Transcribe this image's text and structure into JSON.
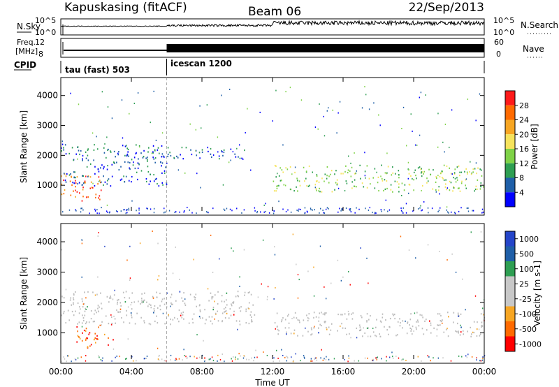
{
  "header": {
    "station": "Kapuskasing (fitACF)",
    "beam": "Beam 06",
    "date": "22/Sep/2013"
  },
  "noise_panel": {
    "left_label": "N.Sky",
    "left_ticks": [
      "10^5",
      "10^0"
    ],
    "right_label": "N.Search",
    "right_ticks": [
      "10^5",
      "10^0"
    ]
  },
  "freq_panel": {
    "left_label_top": "Freq.",
    "left_label_bottom": "[MHz]",
    "left_ticks": [
      "12",
      "8"
    ],
    "right_label": "Nave",
    "right_ticks": [
      "60",
      "0"
    ]
  },
  "cpid_panel": {
    "label": "CPID",
    "segments": [
      {
        "label": "tau (fast) 503",
        "start_hour": 0,
        "end_hour": 6
      },
      {
        "label": "icescan 1200",
        "start_hour": 6,
        "end_hour": 24
      }
    ]
  },
  "x_axis": {
    "label": "Time UT",
    "range_hours": [
      0,
      24
    ],
    "ticks": [
      "00:00",
      "04:00",
      "08:00",
      "12:00",
      "16:00",
      "20:00",
      "00:00"
    ]
  },
  "colors": {
    "power_scale": [
      "#0000ff",
      "#1f5fa8",
      "#2e9e52",
      "#7fd247",
      "#f6e35c",
      "#f7a623",
      "#ff6a00",
      "#ff1a1a"
    ],
    "velocity_scale": [
      "#ff0000",
      "#ff6a00",
      "#f7a623",
      "#c8c8c8",
      "#c8c8c8",
      "#2e9e52",
      "#1f5fa8",
      "#2545c9"
    ],
    "ground_scatter": "#bcbcbc"
  },
  "chart_data": [
    {
      "type": "heatmap",
      "title": "Power",
      "xlabel": "",
      "ylabel": "Slant Range [km]",
      "xlim": [
        0,
        24
      ],
      "ylim": [
        0,
        4600
      ],
      "yticks": [
        "1000",
        "2000",
        "3000",
        "4000"
      ],
      "colorbar": {
        "label": "Power [dB]",
        "ticks": [
          "28",
          "24",
          "20",
          "16",
          "12",
          "8",
          "4"
        ]
      },
      "features": [
        {
          "start_hour": 0.0,
          "end_hour": 2.4,
          "range_low_km": 500,
          "range_high_km": 1400,
          "typical_value": 26
        },
        {
          "start_hour": 0.0,
          "end_hour": 6.0,
          "range_low_km": 1000,
          "range_high_km": 2400,
          "typical_value": 8
        },
        {
          "start_hour": 6.0,
          "end_hour": 10.5,
          "range_low_km": 1900,
          "range_high_km": 2300,
          "typical_value": 8
        },
        {
          "start_hour": 12.0,
          "end_hour": 24.0,
          "range_low_km": 800,
          "range_high_km": 1700,
          "typical_value": 14
        }
      ]
    },
    {
      "type": "heatmap",
      "title": "Velocity",
      "xlabel": "Time UT",
      "ylabel": "Slant Range [km]",
      "xlim": [
        0,
        24
      ],
      "ylim": [
        0,
        4600
      ],
      "yticks": [
        "1000",
        "2000",
        "3000",
        "4000"
      ],
      "colorbar": {
        "label": "Velocity [m s-1]",
        "ticks": [
          "1000",
          "500",
          "100",
          "25",
          "-25",
          "-100",
          "-500",
          "-1000"
        ]
      },
      "features": [
        {
          "start_hour": 0.8,
          "end_hour": 3.0,
          "range_low_km": 500,
          "range_high_km": 1300,
          "typical_value": -300
        },
        {
          "start_hour": 0.0,
          "end_hour": 11.0,
          "range_low_km": 1300,
          "range_high_km": 2400,
          "typical_value": 0
        },
        {
          "start_hour": 12.0,
          "end_hour": 24.0,
          "range_low_km": 900,
          "range_high_km": 1700,
          "typical_value": 0
        }
      ]
    }
  ]
}
